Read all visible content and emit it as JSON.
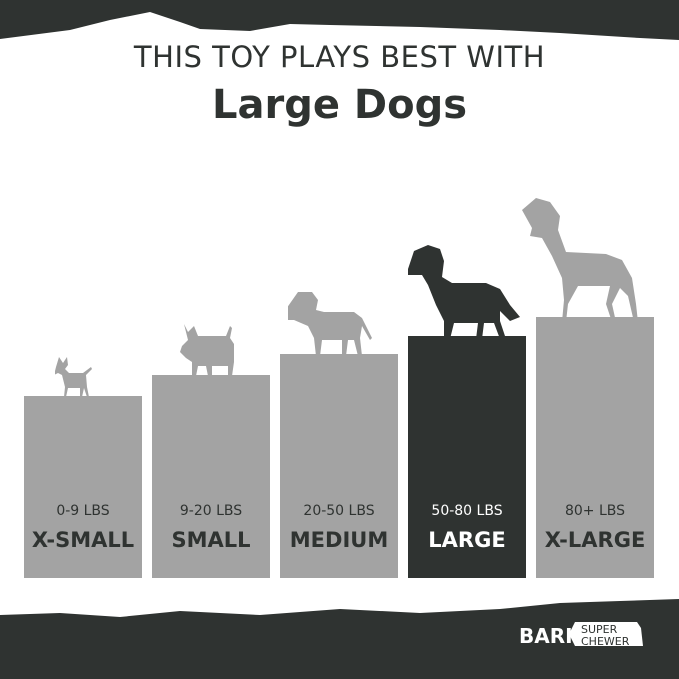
{
  "header": {
    "line1": "THIS TOY PLAYS BEST WITH",
    "line2": "Large Dogs"
  },
  "sizes": [
    {
      "weight": "0-9 LBS",
      "name": "X-SMALL",
      "active": false
    },
    {
      "weight": "9-20 LBS",
      "name": "SMALL",
      "active": false
    },
    {
      "weight": "20-50 LBS",
      "name": "MEDIUM",
      "active": false
    },
    {
      "weight": "50-80 LBS",
      "name": "LARGE",
      "active": true
    },
    {
      "weight": "80+ LBS",
      "name": "X-LARGE",
      "active": false
    }
  ],
  "logo": {
    "brand": "BARK",
    "sub1": "SUPER",
    "sub2": "CHEWER"
  },
  "colors": {
    "dark": "#2f3331",
    "bar": "#a3a3a3",
    "highlight": "#2f3331"
  }
}
